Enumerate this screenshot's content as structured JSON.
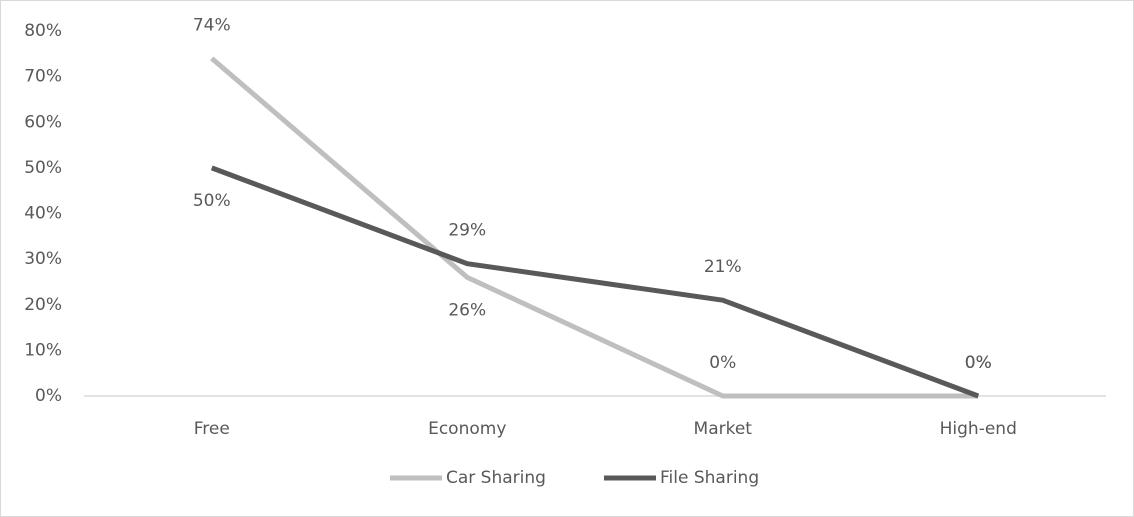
{
  "chart_data": {
    "type": "line",
    "categories": [
      "Free",
      "Economy",
      "Market",
      "High-end"
    ],
    "series": [
      {
        "name": "Car Sharing",
        "color": "#bfbfbf",
        "values": [
          74,
          26,
          0,
          0
        ],
        "value_labels": [
          "74%",
          "26%",
          "0%",
          "0%"
        ]
      },
      {
        "name": "File Sharing",
        "color": "#595959",
        "values": [
          50,
          29,
          21,
          0
        ],
        "value_labels": [
          "50%",
          "29%",
          "21%",
          "0%"
        ]
      }
    ],
    "ylim": [
      0,
      80
    ],
    "yticks": [
      {
        "value": 0,
        "label": "0%"
      },
      {
        "value": 10,
        "label": "10%"
      },
      {
        "value": 20,
        "label": "20%"
      },
      {
        "value": 30,
        "label": "30%"
      },
      {
        "value": 40,
        "label": "40%"
      },
      {
        "value": 50,
        "label": "50%"
      },
      {
        "value": 60,
        "label": "60%"
      },
      {
        "value": 70,
        "label": "70%"
      },
      {
        "value": 80,
        "label": "80%"
      }
    ],
    "grid": false,
    "legend": "bottom"
  }
}
